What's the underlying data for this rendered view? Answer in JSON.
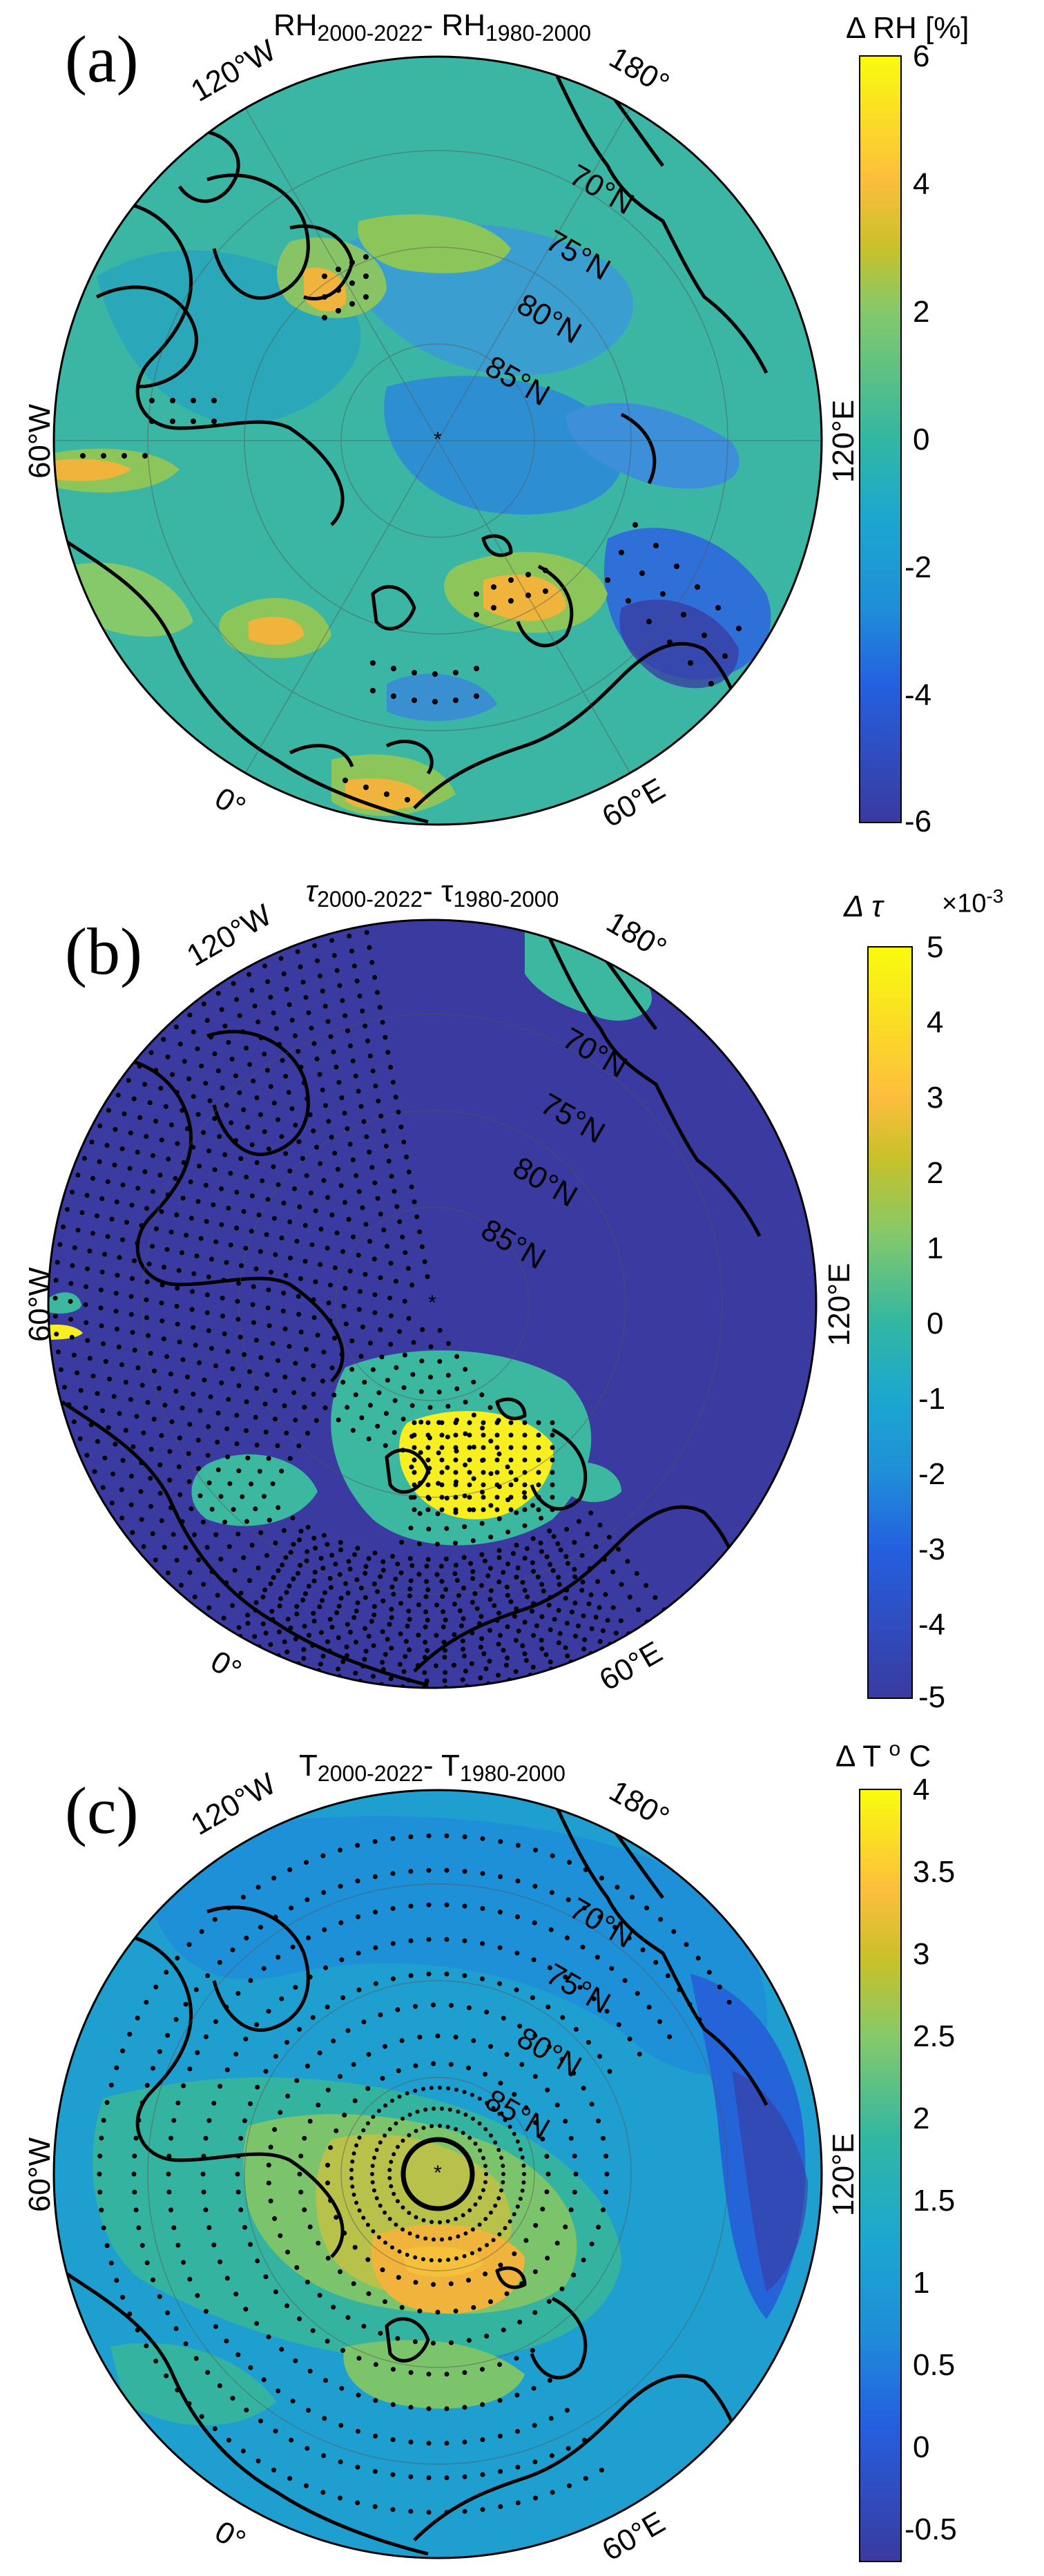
{
  "colors": {
    "ocean_base": "#2fb3a8",
    "land_base": "#39b7a2",
    "dark_blue": "#3a3aa0",
    "yellow": "#f7f030",
    "orange": "#f0b43c",
    "light_green": "#7cc46c",
    "mid_blue": "#1f8fd0"
  },
  "panels": [
    {
      "id": "a",
      "letter": "(a)",
      "title_main": "RH",
      "title_sub1": "2000-2022",
      "title_mid": "- RH",
      "title_sub2": "1980-2000",
      "colorbar": {
        "title": "Δ RH [%]",
        "ticks": [
          "6",
          "4",
          "2",
          "0",
          "-2",
          "-4",
          "-6"
        ],
        "min": -6,
        "max": 6
      },
      "lon_labels": [
        "120°W",
        "180°",
        "60°W",
        "120°E",
        "0°",
        "60°E"
      ],
      "lat_labels": [
        "70°N",
        "75°N",
        "80°N",
        "85°N"
      ]
    },
    {
      "id": "b",
      "letter": "(b)",
      "title_main": "τ",
      "title_sub1": "2000-2022",
      "title_mid": "- τ",
      "title_sub2": "1980-2000",
      "colorbar": {
        "title": "Δ τ",
        "exponent": "×10",
        "exponent_power": "-3",
        "ticks": [
          "5",
          "4",
          "3",
          "2",
          "1",
          "0",
          "-1",
          "-2",
          "-3",
          "-4",
          "-5"
        ],
        "min": -5,
        "max": 5
      },
      "lon_labels": [
        "120°W",
        "180°",
        "60°W",
        "120°E",
        "0°",
        "60°E"
      ],
      "lat_labels": [
        "70°N",
        "75°N",
        "80°N",
        "85°N"
      ]
    },
    {
      "id": "c",
      "letter": "(c)",
      "title_main": "T",
      "title_sub1": "2000-2022",
      "title_mid": "- T",
      "title_sub2": "1980-2000",
      "colorbar": {
        "title": "Δ T",
        "unit": "o",
        "unit2": "C",
        "ticks": [
          "4",
          "3.5",
          "3",
          "2.5",
          "2",
          "1.5",
          "1",
          "0.5",
          "0",
          "-0.5"
        ],
        "min": -0.7,
        "max": 4
      },
      "lon_labels": [
        "120°W",
        "180°",
        "60°W",
        "120°E",
        "0°",
        "60°E"
      ],
      "lat_labels": [
        "70°N",
        "75°N",
        "80°N",
        "85°N"
      ]
    }
  ]
}
